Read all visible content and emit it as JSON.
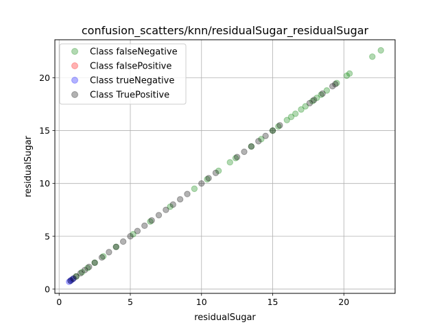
{
  "chart_data": {
    "type": "scatter",
    "title": "confusion_scatters/knn/residualSugar_residualSugar",
    "xlabel": "residualSugar",
    "ylabel": "residualSugar",
    "xlim": [
      -0.3,
      23.6
    ],
    "ylim": [
      -0.4,
      23.6
    ],
    "xticks": [
      0,
      5,
      10,
      15,
      20
    ],
    "yticks": [
      0,
      5,
      10,
      15,
      20
    ],
    "grid": true,
    "legend_position": "top-left",
    "series": [
      {
        "name": "Class falseNegative",
        "color": "#008000",
        "alpha": 0.3,
        "x": [
          1.2,
          1.6,
          2.0,
          2.5,
          3.1,
          4.0,
          5.2,
          6.4,
          7.8,
          9.5,
          10.4,
          11.2,
          12.0,
          12.4,
          13.5,
          14.2,
          15.0,
          15.4,
          16.0,
          16.3,
          16.6,
          17.0,
          17.3,
          17.8,
          18.1,
          18.4,
          18.8,
          19.5,
          20.2,
          20.4,
          22.0,
          22.6
        ],
        "y": [
          1.2,
          1.6,
          2.0,
          2.5,
          3.1,
          4.0,
          5.2,
          6.4,
          7.8,
          9.5,
          10.4,
          11.2,
          12.0,
          12.4,
          13.5,
          14.2,
          15.0,
          15.4,
          16.0,
          16.3,
          16.6,
          17.0,
          17.3,
          17.8,
          18.1,
          18.4,
          18.8,
          19.5,
          20.2,
          20.4,
          22.0,
          22.6
        ]
      },
      {
        "name": "Class falsePositive",
        "color": "#ff0000",
        "alpha": 0.3,
        "x": [],
        "y": []
      },
      {
        "name": "Class trueNegative",
        "color": "#0000ff",
        "alpha": 0.3,
        "x": [
          0.7,
          0.8,
          0.9,
          1.0
        ],
        "y": [
          0.7,
          0.8,
          0.9,
          1.0
        ]
      },
      {
        "name": "Class TruePositive",
        "color": "#000000",
        "alpha": 0.3,
        "x": [
          0.8,
          1.0,
          1.2,
          1.5,
          1.8,
          2.1,
          2.5,
          3.0,
          3.5,
          4.0,
          4.5,
          5.0,
          5.5,
          6.0,
          6.5,
          7.0,
          7.5,
          8.0,
          8.5,
          9.0,
          10.0,
          10.5,
          11.0,
          12.5,
          13.0,
          13.5,
          14.0,
          14.5,
          15.0,
          15.5,
          17.6,
          17.9,
          18.5,
          19.2,
          19.4
        ],
        "y": [
          0.8,
          1.0,
          1.2,
          1.5,
          1.8,
          2.1,
          2.5,
          3.0,
          3.5,
          4.0,
          4.5,
          5.0,
          5.5,
          6.0,
          6.5,
          7.0,
          7.5,
          8.0,
          8.5,
          9.0,
          10.0,
          10.5,
          11.0,
          12.5,
          13.0,
          13.5,
          14.0,
          14.5,
          15.0,
          15.5,
          17.6,
          17.9,
          18.5,
          19.2,
          19.4
        ]
      }
    ]
  }
}
